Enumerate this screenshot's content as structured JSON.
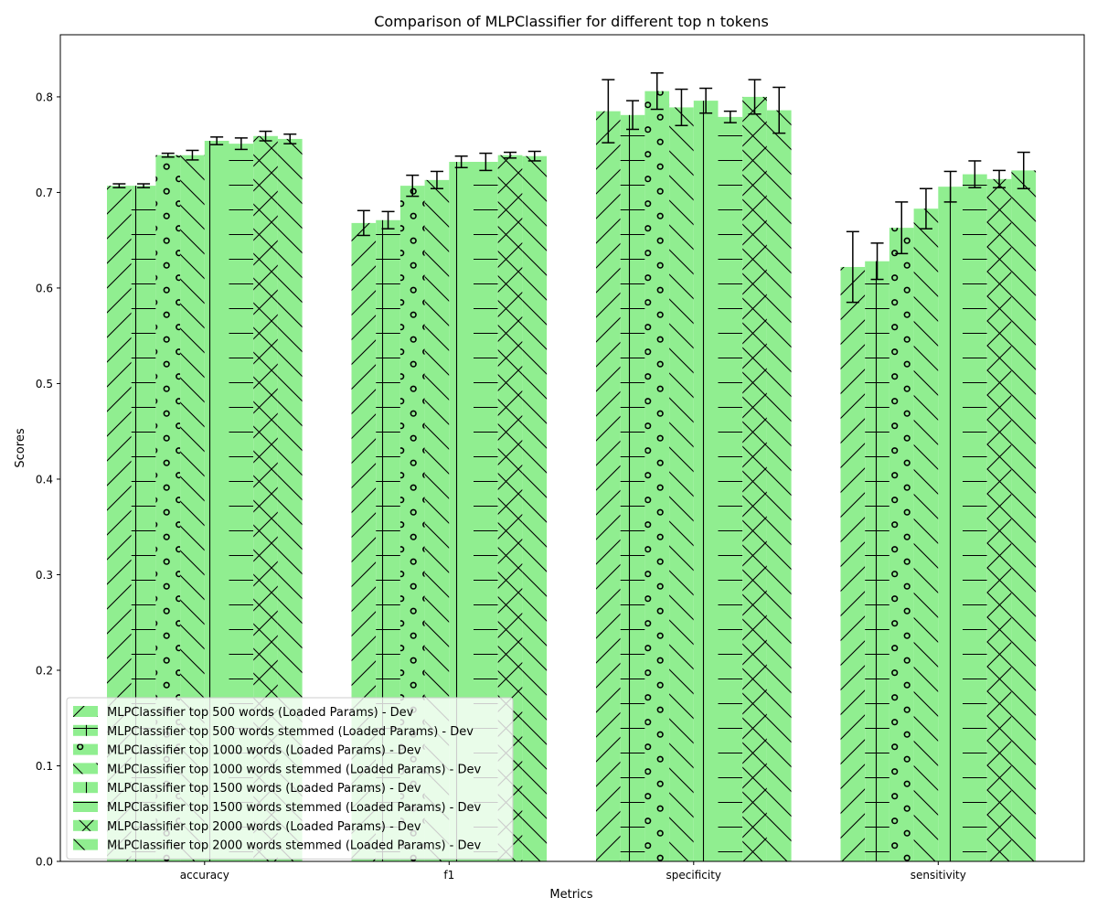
{
  "chart_data": {
    "type": "bar",
    "title": "Comparison of MLPClassifier for different top n tokens",
    "xlabel": "Metrics",
    "ylabel": "Scores",
    "ylim": [
      0,
      0.865
    ],
    "yticks": [
      "0.0",
      "0.1",
      "0.2",
      "0.3",
      "0.4",
      "0.5",
      "0.6",
      "0.7",
      "0.8"
    ],
    "categories": [
      "accuracy",
      "f1",
      "specificity",
      "sensitivity"
    ],
    "bar_color": "#90ee90",
    "legend_position": "lower left",
    "grid": false,
    "series": [
      {
        "name": "MLPClassifier top 500 words  (Loaded Params) - Dev",
        "hatch": "/",
        "values": [
          0.707,
          0.668,
          0.785,
          0.622
        ],
        "errors": [
          0.002,
          0.013,
          0.033,
          0.037
        ]
      },
      {
        "name": "MLPClassifier top 500 words stemmed (Loaded Params) - Dev",
        "hatch": "+",
        "values": [
          0.707,
          0.671,
          0.781,
          0.628
        ],
        "errors": [
          0.002,
          0.009,
          0.015,
          0.019
        ]
      },
      {
        "name": "MLPClassifier top 1000 words  (Loaded Params) - Dev",
        "hatch": "o",
        "values": [
          0.739,
          0.707,
          0.806,
          0.663
        ],
        "errors": [
          0.002,
          0.011,
          0.019,
          0.027
        ]
      },
      {
        "name": "MLPClassifier top 1000 words stemmed (Loaded Params) - Dev",
        "hatch": "\\",
        "values": [
          0.739,
          0.713,
          0.789,
          0.683
        ],
        "errors": [
          0.005,
          0.009,
          0.019,
          0.021
        ]
      },
      {
        "name": "MLPClassifier top 1500 words  (Loaded Params) - Dev",
        "hatch": "|",
        "values": [
          0.754,
          0.732,
          0.796,
          0.706
        ],
        "errors": [
          0.004,
          0.006,
          0.013,
          0.016
        ]
      },
      {
        "name": "MLPClassifier top 1500 words stemmed (Loaded Params) - Dev",
        "hatch": "-",
        "values": [
          0.751,
          0.732,
          0.779,
          0.719
        ],
        "errors": [
          0.006,
          0.009,
          0.006,
          0.014
        ]
      },
      {
        "name": "MLPClassifier top 2000 words  (Loaded Params) - Dev",
        "hatch": "x",
        "values": [
          0.759,
          0.739,
          0.8,
          0.714
        ],
        "errors": [
          0.005,
          0.003,
          0.018,
          0.009
        ]
      },
      {
        "name": "MLPClassifier top 2000 words stemmed (Loaded Params) - Dev",
        "hatch": "\\",
        "values": [
          0.756,
          0.738,
          0.786,
          0.723
        ],
        "errors": [
          0.005,
          0.005,
          0.024,
          0.019
        ]
      }
    ]
  }
}
